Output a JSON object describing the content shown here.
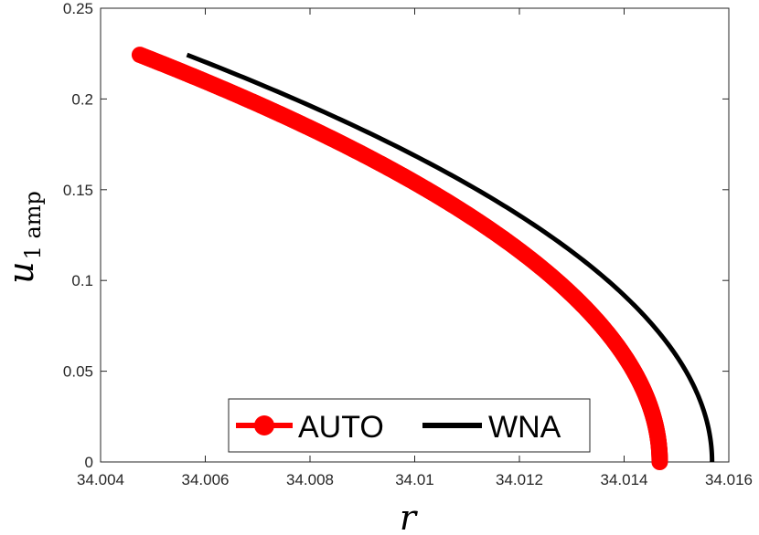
{
  "chart_data": {
    "type": "line",
    "xlabel": "r",
    "ylabel": "u",
    "ylabel_sub": "1 amp",
    "xlim": [
      34.004,
      34.016
    ],
    "ylim": [
      0,
      0.25
    ],
    "x_ticks": [
      "34.004",
      "34.006",
      "34.008",
      "34.01",
      "34.012",
      "34.014",
      "34.016"
    ],
    "y_ticks": [
      "0",
      "0.05",
      "0.1",
      "0.15",
      "0.2",
      "0.25"
    ],
    "legend_position": "bottom-center",
    "series": [
      {
        "name": "AUTO",
        "color": "#ff0000",
        "style": "markers",
        "r0": 34.01468,
        "r_min": 34.00475,
        "amp_max": 0.2243
      },
      {
        "name": "WNA",
        "color": "#000000",
        "style": "line",
        "r0": 34.01568,
        "r_min": 34.00565,
        "amp_max": 0.2243
      }
    ]
  }
}
